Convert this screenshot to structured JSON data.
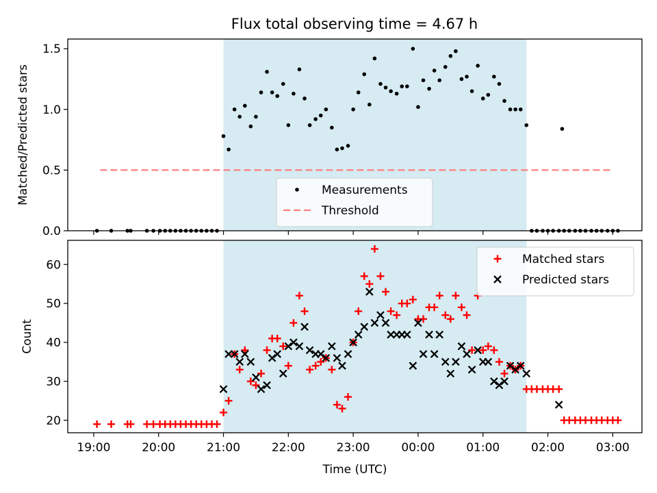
{
  "figure_title": "Flux total observing time = 4.67 h",
  "colors": {
    "band": "#add8e6",
    "measurement": "#000000",
    "threshold": "#ff7f7f",
    "matched": "#ff0000",
    "predicted": "#000000"
  },
  "chart_data": [
    {
      "type": "scatter",
      "title": "Flux total observing time = 4.67 h",
      "ylabel": "Matched/Predicted stars",
      "xlabel": "",
      "x_unit": "hours since 19:00 UTC",
      "xlim": [
        -0.4,
        8.45
      ],
      "ylim": [
        0,
        1.58
      ],
      "y_ticks": [
        0.0,
        0.5,
        1.0,
        1.5
      ],
      "y_tick_labels": [
        "0.0",
        "0.5",
        "1.0",
        "1.5"
      ],
      "observing_band": [
        2.0,
        6.67
      ],
      "legend": {
        "position": "lower center",
        "entries": [
          "Measurements",
          "Threshold"
        ]
      },
      "series": [
        {
          "name": "Measurements",
          "marker": "dot",
          "points": [
            [
              0.05,
              0
            ],
            [
              0.27,
              0
            ],
            [
              0.52,
              0
            ],
            [
              0.57,
              0
            ],
            [
              0.82,
              0
            ],
            [
              0.92,
              0
            ],
            [
              1.02,
              0
            ],
            [
              1.1,
              0
            ],
            [
              1.18,
              0
            ],
            [
              1.26,
              0
            ],
            [
              1.34,
              0
            ],
            [
              1.42,
              0
            ],
            [
              1.5,
              0
            ],
            [
              1.58,
              0
            ],
            [
              1.66,
              0
            ],
            [
              1.74,
              0
            ],
            [
              1.82,
              0
            ],
            [
              1.9,
              0
            ],
            [
              2.0,
              0.78
            ],
            [
              2.08,
              0.67
            ],
            [
              2.17,
              1.0
            ],
            [
              2.25,
              0.94
            ],
            [
              2.33,
              1.03
            ],
            [
              2.42,
              0.86
            ],
            [
              2.5,
              0.94
            ],
            [
              2.58,
              1.14
            ],
            [
              2.67,
              1.31
            ],
            [
              2.75,
              1.14
            ],
            [
              2.83,
              1.11
            ],
            [
              2.92,
              1.21
            ],
            [
              3.0,
              0.87
            ],
            [
              3.08,
              1.13
            ],
            [
              3.17,
              1.33
            ],
            [
              3.25,
              1.09
            ],
            [
              3.33,
              0.87
            ],
            [
              3.42,
              0.92
            ],
            [
              3.5,
              0.95
            ],
            [
              3.58,
              1.0
            ],
            [
              3.67,
              0.85
            ],
            [
              3.75,
              0.67
            ],
            [
              3.83,
              0.68
            ],
            [
              3.92,
              0.7
            ],
            [
              4.0,
              1.0
            ],
            [
              4.08,
              1.14
            ],
            [
              4.17,
              1.29
            ],
            [
              4.25,
              1.04
            ],
            [
              4.33,
              1.42
            ],
            [
              4.42,
              1.21
            ],
            [
              4.5,
              1.18
            ],
            [
              4.58,
              1.15
            ],
            [
              4.67,
              1.13
            ],
            [
              4.75,
              1.19
            ],
            [
              4.83,
              1.19
            ],
            [
              4.92,
              1.5
            ],
            [
              5.0,
              1.02
            ],
            [
              5.08,
              1.24
            ],
            [
              5.17,
              1.17
            ],
            [
              5.25,
              1.32
            ],
            [
              5.33,
              1.24
            ],
            [
              5.42,
              1.35
            ],
            [
              5.5,
              1.44
            ],
            [
              5.58,
              1.48
            ],
            [
              5.67,
              1.25
            ],
            [
              5.75,
              1.27
            ],
            [
              5.83,
              1.15
            ],
            [
              5.92,
              1.36
            ],
            [
              6.0,
              1.09
            ],
            [
              6.08,
              1.12
            ],
            [
              6.17,
              1.27
            ],
            [
              6.25,
              1.21
            ],
            [
              6.33,
              1.07
            ],
            [
              6.42,
              1.0
            ],
            [
              6.5,
              1.0
            ],
            [
              6.58,
              1.0
            ],
            [
              6.67,
              0.87
            ],
            [
              6.75,
              0
            ],
            [
              6.83,
              0
            ],
            [
              6.92,
              0
            ],
            [
              7.0,
              0
            ],
            [
              7.08,
              0
            ],
            [
              7.17,
              0
            ],
            [
              7.25,
              0
            ],
            [
              7.33,
              0
            ],
            [
              7.42,
              0
            ],
            [
              7.5,
              0
            ],
            [
              7.58,
              0
            ],
            [
              7.67,
              0
            ],
            [
              7.75,
              0
            ],
            [
              7.83,
              0
            ],
            [
              7.92,
              0
            ],
            [
              8.0,
              0
            ],
            [
              8.08,
              0
            ],
            [
              7.22,
              0.84
            ]
          ]
        },
        {
          "name": "Threshold",
          "marker": "dashed-line",
          "points": [
            [
              0.1,
              0.5
            ],
            [
              8.0,
              0.5
            ]
          ]
        }
      ]
    },
    {
      "type": "scatter",
      "title": "",
      "ylabel": "Count",
      "xlabel": "Time (UTC)",
      "x_unit": "hours since 19:00 UTC",
      "xlim": [
        -0.4,
        8.45
      ],
      "ylim": [
        16.8,
        66.2
      ],
      "y_ticks": [
        20,
        30,
        40,
        50,
        60
      ],
      "y_tick_labels": [
        "20",
        "30",
        "40",
        "50",
        "60"
      ],
      "x_ticks": [
        0,
        1,
        2,
        3,
        4,
        5,
        6,
        7,
        8
      ],
      "x_tick_labels": [
        "19:00",
        "20:00",
        "21:00",
        "22:00",
        "23:00",
        "00:00",
        "01:00",
        "02:00",
        "03:00"
      ],
      "observing_band": [
        2.0,
        6.67
      ],
      "legend": {
        "position": "upper right",
        "entries": [
          "Matched stars",
          "Predicted stars"
        ]
      },
      "series": [
        {
          "name": "Matched stars",
          "marker": "plus",
          "points": [
            [
              0.05,
              19
            ],
            [
              0.27,
              19
            ],
            [
              0.52,
              19
            ],
            [
              0.57,
              19
            ],
            [
              0.82,
              19
            ],
            [
              0.92,
              19
            ],
            [
              1.02,
              19
            ],
            [
              1.1,
              19
            ],
            [
              1.18,
              19
            ],
            [
              1.26,
              19
            ],
            [
              1.34,
              19
            ],
            [
              1.42,
              19
            ],
            [
              1.5,
              19
            ],
            [
              1.58,
              19
            ],
            [
              1.66,
              19
            ],
            [
              1.74,
              19
            ],
            [
              1.82,
              19
            ],
            [
              1.9,
              19
            ],
            [
              2.0,
              22
            ],
            [
              2.08,
              25
            ],
            [
              2.17,
              37
            ],
            [
              2.25,
              33
            ],
            [
              2.33,
              38
            ],
            [
              2.42,
              30
            ],
            [
              2.5,
              29
            ],
            [
              2.58,
              32
            ],
            [
              2.67,
              38
            ],
            [
              2.75,
              41
            ],
            [
              2.83,
              41
            ],
            [
              2.92,
              39
            ],
            [
              3.0,
              34
            ],
            [
              3.08,
              45
            ],
            [
              3.17,
              52
            ],
            [
              3.25,
              48
            ],
            [
              3.33,
              33
            ],
            [
              3.42,
              34
            ],
            [
              3.5,
              35
            ],
            [
              3.58,
              36
            ],
            [
              3.67,
              33
            ],
            [
              3.75,
              24
            ],
            [
              3.83,
              23
            ],
            [
              3.92,
              26
            ],
            [
              4.0,
              40
            ],
            [
              4.08,
              48
            ],
            [
              4.17,
              57
            ],
            [
              4.25,
              55
            ],
            [
              4.33,
              64
            ],
            [
              4.42,
              57
            ],
            [
              4.5,
              53
            ],
            [
              4.58,
              48
            ],
            [
              4.67,
              47
            ],
            [
              4.75,
              50
            ],
            [
              4.83,
              50
            ],
            [
              4.92,
              51
            ],
            [
              5.0,
              46
            ],
            [
              5.08,
              46
            ],
            [
              5.17,
              49
            ],
            [
              5.25,
              49
            ],
            [
              5.33,
              52
            ],
            [
              5.42,
              47
            ],
            [
              5.5,
              46
            ],
            [
              5.58,
              52
            ],
            [
              5.67,
              49
            ],
            [
              5.75,
              47
            ],
            [
              5.83,
              38
            ],
            [
              5.92,
              52
            ],
            [
              6.0,
              38
            ],
            [
              6.08,
              39
            ],
            [
              6.17,
              38
            ],
            [
              6.25,
              35
            ],
            [
              6.33,
              32
            ],
            [
              6.42,
              34
            ],
            [
              6.5,
              33
            ],
            [
              6.58,
              34
            ],
            [
              6.67,
              28
            ],
            [
              6.75,
              28
            ],
            [
              6.83,
              28
            ],
            [
              6.92,
              28
            ],
            [
              7.0,
              28
            ],
            [
              7.08,
              28
            ],
            [
              7.17,
              28
            ],
            [
              7.25,
              20
            ],
            [
              7.33,
              20
            ],
            [
              7.42,
              20
            ],
            [
              7.5,
              20
            ],
            [
              7.58,
              20
            ],
            [
              7.67,
              20
            ],
            [
              7.75,
              20
            ],
            [
              7.83,
              20
            ],
            [
              7.92,
              20
            ],
            [
              8.0,
              20
            ],
            [
              8.08,
              20
            ]
          ]
        },
        {
          "name": "Predicted stars",
          "marker": "x",
          "points": [
            [
              2.0,
              28
            ],
            [
              2.08,
              37
            ],
            [
              2.17,
              37
            ],
            [
              2.25,
              35
            ],
            [
              2.33,
              37
            ],
            [
              2.42,
              35
            ],
            [
              2.5,
              31
            ],
            [
              2.58,
              28
            ],
            [
              2.67,
              29
            ],
            [
              2.75,
              36
            ],
            [
              2.83,
              37
            ],
            [
              2.92,
              32
            ],
            [
              3.0,
              39
            ],
            [
              3.08,
              40
            ],
            [
              3.17,
              39
            ],
            [
              3.25,
              44
            ],
            [
              3.33,
              38
            ],
            [
              3.42,
              37
            ],
            [
              3.5,
              37
            ],
            [
              3.58,
              36
            ],
            [
              3.67,
              39
            ],
            [
              3.75,
              36
            ],
            [
              3.83,
              34
            ],
            [
              3.92,
              37
            ],
            [
              4.0,
              40
            ],
            [
              4.08,
              42
            ],
            [
              4.17,
              44
            ],
            [
              4.25,
              53
            ],
            [
              4.33,
              45
            ],
            [
              4.42,
              47
            ],
            [
              4.5,
              45
            ],
            [
              4.58,
              42
            ],
            [
              4.67,
              42
            ],
            [
              4.75,
              42
            ],
            [
              4.83,
              42
            ],
            [
              4.92,
              34
            ],
            [
              5.0,
              45
            ],
            [
              5.08,
              37
            ],
            [
              5.17,
              42
            ],
            [
              5.25,
              37
            ],
            [
              5.33,
              42
            ],
            [
              5.42,
              35
            ],
            [
              5.5,
              32
            ],
            [
              5.58,
              35
            ],
            [
              5.67,
              39
            ],
            [
              5.75,
              37
            ],
            [
              5.83,
              33
            ],
            [
              5.92,
              38
            ],
            [
              6.0,
              35
            ],
            [
              6.08,
              35
            ],
            [
              6.17,
              30
            ],
            [
              6.25,
              29
            ],
            [
              6.33,
              30
            ],
            [
              6.42,
              34
            ],
            [
              6.5,
              33
            ],
            [
              6.58,
              34
            ],
            [
              6.67,
              32
            ],
            [
              7.17,
              24
            ]
          ]
        }
      ]
    }
  ]
}
